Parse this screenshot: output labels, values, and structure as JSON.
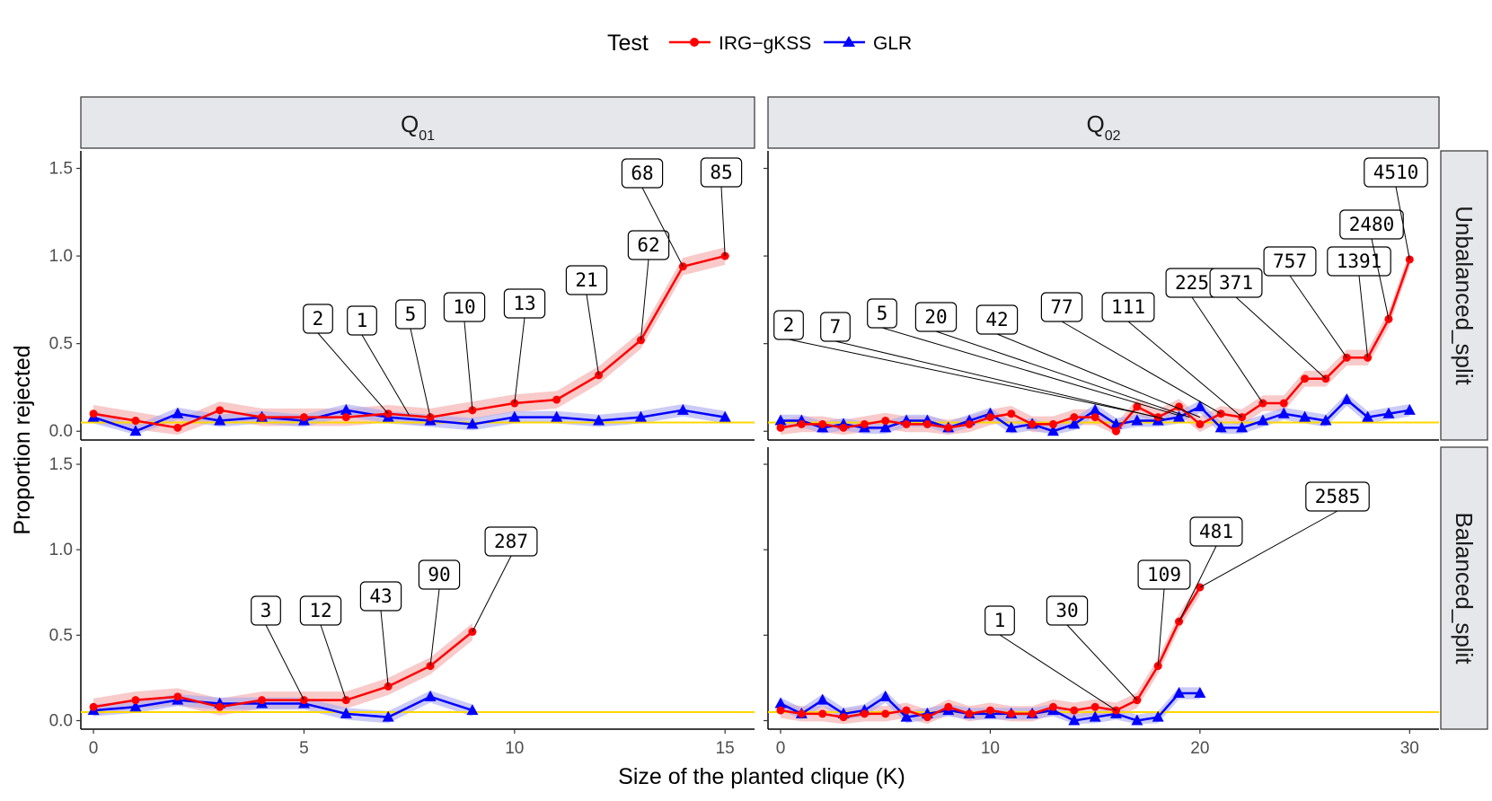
{
  "chart_data": {
    "type": "line",
    "xlabel": "Size of the planted clique (K)",
    "ylabel": "Proportion rejected",
    "legend": {
      "title": "Test",
      "position": "top",
      "entries": [
        {
          "name": "IRG−gKSS",
          "color": "#ff0000",
          "marker": "circle"
        },
        {
          "name": "GLR",
          "color": "#0000ff",
          "marker": "triangle"
        }
      ]
    },
    "reference_line": {
      "y": 0.05,
      "color": "#ffd700"
    },
    "ylim": [
      -0.05,
      1.6
    ],
    "yticks": [
      0.0,
      0.5,
      1.0,
      1.5
    ],
    "ytick_labels": [
      "0.0",
      "0.5",
      "1.0",
      "1.5"
    ],
    "columns": [
      {
        "label": "Q",
        "subscript": "01",
        "xlim": [
          -0.3,
          15.7
        ],
        "xticks": [
          0,
          5,
          10,
          15
        ],
        "xtick_labels": [
          "0",
          "5",
          "10",
          "15"
        ]
      },
      {
        "label": "Q",
        "subscript": "02",
        "xlim": [
          -0.6,
          31.4
        ],
        "xticks": [
          0,
          10,
          20,
          30
        ],
        "xtick_labels": [
          "0",
          "10",
          "20",
          "30"
        ]
      }
    ],
    "rows": [
      "Unbalanced_split",
      "Balanced_split"
    ],
    "panels": [
      {
        "row": 0,
        "col": 0,
        "series": [
          {
            "name": "IRG−gKSS",
            "x": [
              0,
              1,
              2,
              3,
              4,
              5,
              6,
              7,
              8,
              9,
              10,
              11,
              12,
              13,
              14,
              15
            ],
            "y": [
              0.1,
              0.06,
              0.02,
              0.12,
              0.08,
              0.08,
              0.08,
              0.1,
              0.08,
              0.12,
              0.16,
              0.18,
              0.32,
              0.52,
              0.94,
              1.0
            ],
            "band": 0.05
          },
          {
            "name": "GLR",
            "x": [
              0,
              1,
              2,
              3,
              4,
              5,
              6,
              7,
              8,
              9,
              10,
              11,
              12,
              13,
              14,
              15
            ],
            "y": [
              0.08,
              0.0,
              0.1,
              0.06,
              0.08,
              0.06,
              0.12,
              0.08,
              0.06,
              0.04,
              0.08,
              0.08,
              0.06,
              0.08,
              0.12,
              0.08
            ],
            "band": 0.035
          }
        ],
        "annotations": [
          {
            "x": 7,
            "y": 0.1,
            "text": "2"
          },
          {
            "x": 7.5,
            "y": 0.09,
            "text": "1"
          },
          {
            "x": 8,
            "y": 0.08,
            "text": "5"
          },
          {
            "x": 9,
            "y": 0.12,
            "text": "10"
          },
          {
            "x": 10,
            "y": 0.16,
            "text": "13"
          },
          {
            "x": 12,
            "y": 0.32,
            "text": "21"
          },
          {
            "x": 13,
            "y": 0.52,
            "text": "62"
          },
          {
            "x": 14,
            "y": 0.94,
            "text": "68"
          },
          {
            "x": 15,
            "y": 1.0,
            "text": "85"
          }
        ]
      },
      {
        "row": 0,
        "col": 1,
        "series": [
          {
            "name": "IRG−gKSS",
            "x": [
              0,
              1,
              2,
              3,
              4,
              5,
              6,
              7,
              8,
              9,
              10,
              11,
              12,
              13,
              14,
              15,
              16,
              17,
              18,
              19,
              20,
              21,
              22,
              23,
              24,
              25,
              26,
              27,
              28,
              29,
              30
            ],
            "y": [
              0.02,
              0.04,
              0.04,
              0.02,
              0.04,
              0.06,
              0.04,
              0.04,
              0.02,
              0.04,
              0.08,
              0.1,
              0.04,
              0.04,
              0.08,
              0.08,
              0.0,
              0.14,
              0.08,
              0.14,
              0.04,
              0.1,
              0.08,
              0.16,
              0.16,
              0.3,
              0.3,
              0.42,
              0.42,
              0.64,
              0.98
            ],
            "band": 0.045
          },
          {
            "name": "GLR",
            "x": [
              0,
              1,
              2,
              3,
              4,
              5,
              6,
              7,
              8,
              9,
              10,
              11,
              12,
              13,
              14,
              15,
              16,
              17,
              18,
              19,
              20,
              21,
              22,
              23,
              24,
              25,
              26,
              27,
              28,
              29,
              30
            ],
            "y": [
              0.06,
              0.06,
              0.02,
              0.04,
              0.02,
              0.02,
              0.06,
              0.06,
              0.02,
              0.06,
              0.1,
              0.02,
              0.04,
              0.0,
              0.04,
              0.12,
              0.04,
              0.06,
              0.06,
              0.08,
              0.14,
              0.02,
              0.02,
              0.06,
              0.1,
              0.08,
              0.06,
              0.18,
              0.08,
              0.1,
              0.12
            ],
            "band": 0.035
          }
        ],
        "annotations": [
          {
            "x": 18,
            "y": 0.08,
            "text": "2"
          },
          {
            "x": 18.3,
            "y": 0.07,
            "text": "7"
          },
          {
            "x": 19,
            "y": 0.09,
            "text": "5"
          },
          {
            "x": 19.5,
            "y": 0.08,
            "text": "20"
          },
          {
            "x": 20,
            "y": 0.08,
            "text": "42"
          },
          {
            "x": 21,
            "y": 0.1,
            "text": "77"
          },
          {
            "x": 22,
            "y": 0.08,
            "text": "111"
          },
          {
            "x": 23,
            "y": 0.16,
            "text": "225"
          },
          {
            "x": 26,
            "y": 0.3,
            "text": "371"
          },
          {
            "x": 27,
            "y": 0.42,
            "text": "757"
          },
          {
            "x": 28,
            "y": 0.42,
            "text": "1391"
          },
          {
            "x": 29,
            "y": 0.64,
            "text": "2480"
          },
          {
            "x": 30,
            "y": 0.98,
            "text": "4510"
          }
        ]
      },
      {
        "row": 1,
        "col": 0,
        "series": [
          {
            "name": "IRG−gKSS",
            "x": [
              0,
              1,
              2,
              3,
              4,
              5,
              6,
              7,
              8,
              9
            ],
            "y": [
              0.08,
              0.12,
              0.14,
              0.08,
              0.12,
              0.12,
              0.12,
              0.2,
              0.32,
              0.52
            ],
            "band": 0.05
          },
          {
            "name": "GLR",
            "x": [
              0,
              1,
              2,
              3,
              4,
              5,
              6,
              7,
              8,
              9
            ],
            "y": [
              0.06,
              0.08,
              0.12,
              0.1,
              0.1,
              0.1,
              0.04,
              0.02,
              0.14,
              0.06
            ],
            "band": 0.035
          }
        ],
        "annotations": [
          {
            "x": 5,
            "y": 0.12,
            "text": "3"
          },
          {
            "x": 6,
            "y": 0.12,
            "text": "12"
          },
          {
            "x": 7,
            "y": 0.2,
            "text": "43"
          },
          {
            "x": 8,
            "y": 0.32,
            "text": "90"
          },
          {
            "x": 9,
            "y": 0.52,
            "text": "287"
          }
        ]
      },
      {
        "row": 1,
        "col": 1,
        "series": [
          {
            "name": "IRG−gKSS",
            "x": [
              0,
              1,
              2,
              3,
              4,
              5,
              6,
              7,
              8,
              9,
              10,
              11,
              12,
              13,
              14,
              15,
              16,
              17,
              18,
              19,
              20
            ],
            "y": [
              0.06,
              0.04,
              0.04,
              0.02,
              0.04,
              0.04,
              0.06,
              0.02,
              0.08,
              0.04,
              0.06,
              0.04,
              0.04,
              0.08,
              0.06,
              0.08,
              0.06,
              0.12,
              0.32,
              0.58,
              0.78
            ],
            "band": 0.045
          },
          {
            "name": "GLR",
            "x": [
              0,
              1,
              2,
              3,
              4,
              5,
              6,
              7,
              8,
              9,
              10,
              11,
              12,
              13,
              14,
              15,
              16,
              17,
              18,
              19,
              20
            ],
            "y": [
              0.1,
              0.04,
              0.12,
              0.04,
              0.06,
              0.14,
              0.02,
              0.04,
              0.06,
              0.04,
              0.04,
              0.04,
              0.04,
              0.06,
              0.0,
              0.02,
              0.04,
              0.0,
              0.02,
              0.16,
              0.16
            ],
            "band": 0.035
          }
        ],
        "annotations": [
          {
            "x": 16,
            "y": 0.06,
            "text": "1"
          },
          {
            "x": 17,
            "y": 0.12,
            "text": "30"
          },
          {
            "x": 18,
            "y": 0.32,
            "text": "109"
          },
          {
            "x": 19,
            "y": 0.58,
            "text": "481"
          },
          {
            "x": 20,
            "y": 0.78,
            "text": "2585"
          }
        ]
      }
    ]
  }
}
